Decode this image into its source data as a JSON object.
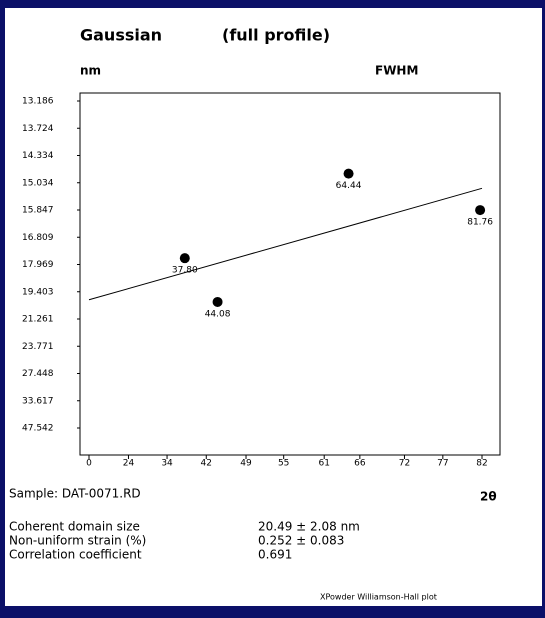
{
  "chart_data": {
    "type": "scatter",
    "title": "Gaussian",
    "subtitle": "(full profile)",
    "y_unit_label": "nm",
    "y_label": "FWHM",
    "x_label": "2θ",
    "xscale": "sin-squared-half-angle",
    "yscale": "tick-interpolated",
    "x": [
      37.8,
      44.08,
      64.44,
      81.76
    ],
    "x_labels": [
      "37.80",
      "44.08",
      "64.44",
      "81.76"
    ],
    "values": [
      17.7,
      20.1,
      14.8,
      15.85
    ],
    "color": "#000000",
    "fit_line": {
      "x": [
        0,
        82
      ],
      "values": [
        19.95,
        15.2
      ],
      "color": "#000000"
    },
    "xlim": [
      0,
      82
    ],
    "ylim": [
      47.542,
      13.186
    ],
    "xticks": [
      0,
      24,
      34,
      42,
      49,
      55,
      61,
      66,
      72,
      77,
      82
    ],
    "yticks": [
      13.186,
      13.724,
      14.334,
      15.034,
      15.847,
      16.809,
      17.969,
      19.403,
      21.261,
      23.771,
      27.448,
      33.617,
      47.542
    ],
    "sample": "Sample: DAT-0071.RD",
    "results": [
      {
        "label": "Coherent domain size",
        "value": "20.49 ± 2.08 nm"
      },
      {
        "label": "Non-uniform strain (%)",
        "value": "0.252 ± 0.083"
      },
      {
        "label": "Correlation coefficient",
        "value": "0.691"
      }
    ],
    "footer": "XPowder Williamson-Hall plot"
  }
}
